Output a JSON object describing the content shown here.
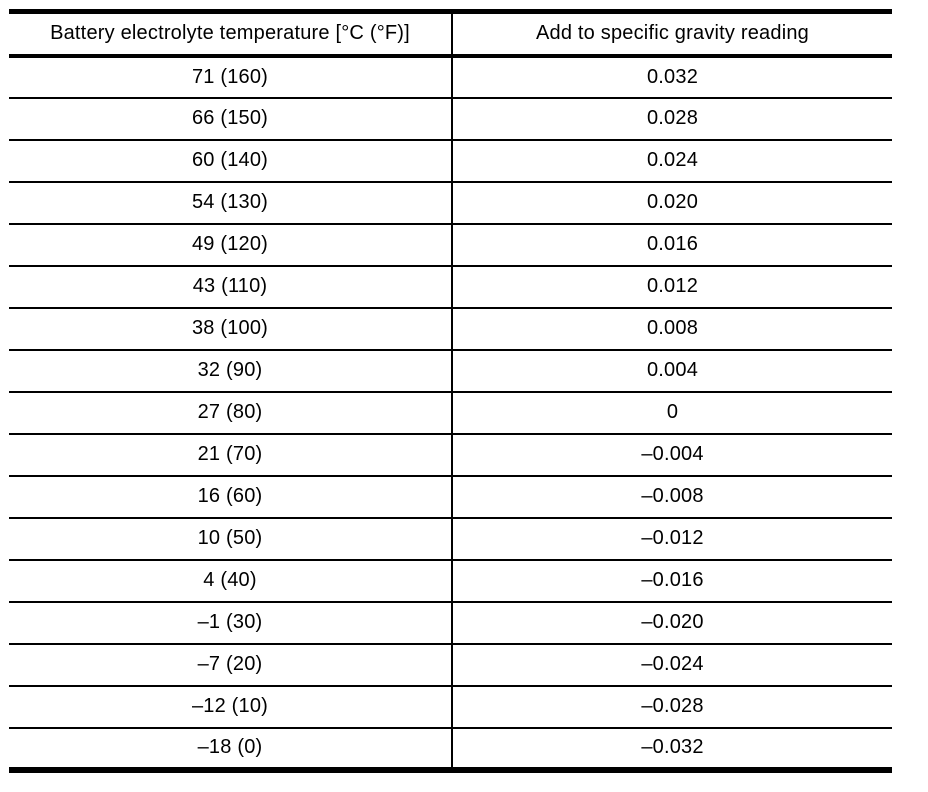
{
  "table": {
    "headers": {
      "temperature": "Battery electrolyte temperature [°C (°F)]",
      "gravity": "Add to specific gravity reading"
    },
    "rows": [
      [
        "71 (160)",
        "0.032"
      ],
      [
        "66 (150)",
        "0.028"
      ],
      [
        "60 (140)",
        "0.024"
      ],
      [
        "54 (130)",
        "0.020"
      ],
      [
        "49 (120)",
        "0.016"
      ],
      [
        "43 (110)",
        "0.012"
      ],
      [
        "38 (100)",
        "0.008"
      ],
      [
        "32 (90)",
        "0.004"
      ],
      [
        "27 (80)",
        "0"
      ],
      [
        "21 (70)",
        "–0.004"
      ],
      [
        "16 (60)",
        "–0.008"
      ],
      [
        "10 (50)",
        "–0.012"
      ],
      [
        "4 (40)",
        "–0.016"
      ],
      [
        "–1 (30)",
        "–0.020"
      ],
      [
        "–7 (20)",
        "–0.024"
      ],
      [
        "–12 (10)",
        "–0.028"
      ],
      [
        "–18 (0)",
        "–0.032"
      ]
    ]
  },
  "colors": {
    "border": "#000000",
    "background": "#ffffff",
    "text": "#000000"
  }
}
